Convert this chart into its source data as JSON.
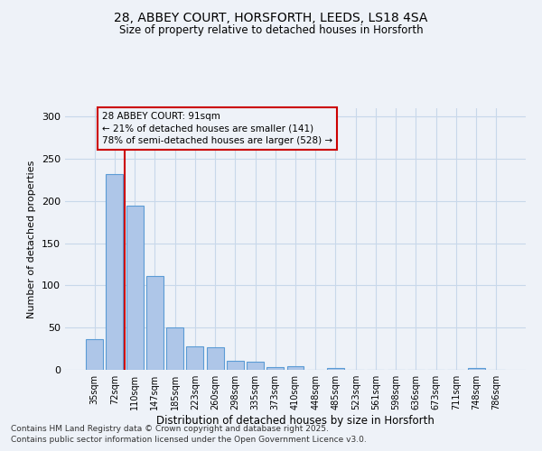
{
  "title1": "28, ABBEY COURT, HORSFORTH, LEEDS, LS18 4SA",
  "title2": "Size of property relative to detached houses in Horsforth",
  "xlabel": "Distribution of detached houses by size in Horsforth",
  "ylabel": "Number of detached properties",
  "bar_labels": [
    "35sqm",
    "72sqm",
    "110sqm",
    "147sqm",
    "185sqm",
    "223sqm",
    "260sqm",
    "298sqm",
    "335sqm",
    "373sqm",
    "410sqm",
    "448sqm",
    "485sqm",
    "523sqm",
    "561sqm",
    "598sqm",
    "636sqm",
    "673sqm",
    "711sqm",
    "748sqm",
    "786sqm"
  ],
  "bar_values": [
    36,
    232,
    195,
    111,
    50,
    28,
    27,
    11,
    10,
    3,
    4,
    0,
    2,
    0,
    0,
    0,
    0,
    0,
    0,
    2,
    0
  ],
  "bar_color": "#aec6e8",
  "bar_edge_color": "#5b9bd5",
  "grid_color": "#c8d8ea",
  "background_color": "#eef2f8",
  "vline_x": 1.5,
  "vline_color": "#cc0000",
  "annotation_text": "28 ABBEY COURT: 91sqm\n← 21% of detached houses are smaller (141)\n78% of semi-detached houses are larger (528) →",
  "annotation_box_color": "#cc0000",
  "ylim": [
    0,
    310
  ],
  "yticks": [
    0,
    50,
    100,
    150,
    200,
    250,
    300
  ],
  "footer1": "Contains HM Land Registry data © Crown copyright and database right 2025.",
  "footer2": "Contains public sector information licensed under the Open Government Licence v3.0."
}
